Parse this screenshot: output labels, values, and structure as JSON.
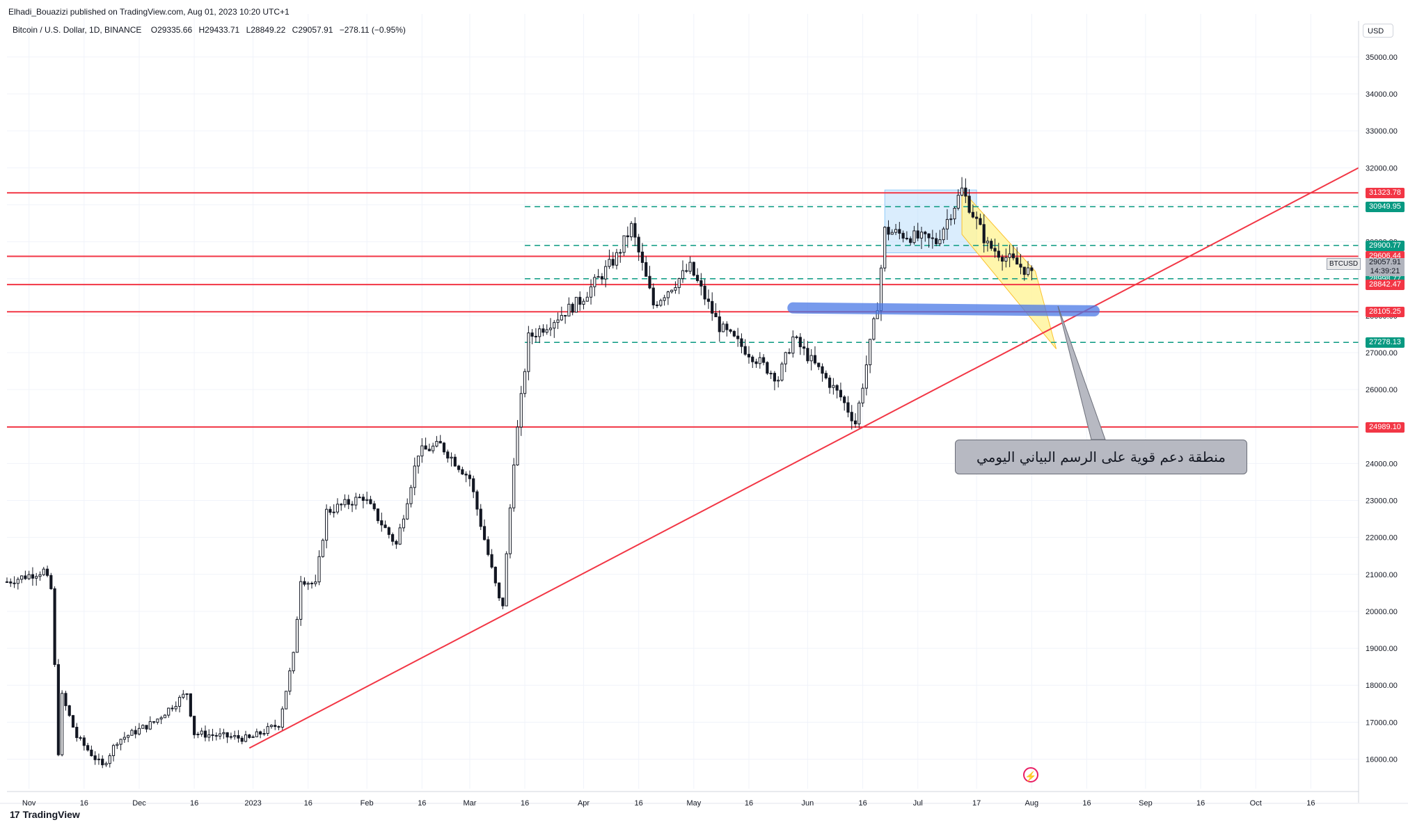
{
  "header": {
    "published": "Elhadi_Bouazizi published on TradingView.com, Aug 01, 2023 10:20 UTC+1",
    "symbol": "Bitcoin / U.S. Dollar, 1D, BINANCE",
    "ohlc": {
      "o_label": "O",
      "o": "29335.66",
      "h_label": "H",
      "h": "29433.71",
      "l_label": "L",
      "l": "28849.22",
      "c_label": "C",
      "c": "29057.91",
      "change": "−278.11 (−0.95%)"
    }
  },
  "currency_button": "USD",
  "symbol_tag": "BTCUSD",
  "last_price": {
    "value": "29057.91",
    "countdown": "14:39:21"
  },
  "callout_text": "منطقة دعم قوية على الرسم البياني اليومي",
  "branding": {
    "logo_text": "TradingView"
  },
  "colors": {
    "up": "#131722",
    "down": "#131722",
    "support_line": "#f23645",
    "dashed": "#089981",
    "zone_blue": "#4a78e6",
    "channel_yellow": "#fff59d",
    "box_blue": "#bbdefb"
  },
  "chart_data": {
    "type": "candlestick",
    "symbol": "BTCUSD",
    "timeframe": "1D",
    "y_ticks": [
      16000,
      17000,
      18000,
      19000,
      20000,
      21000,
      22000,
      23000,
      24000,
      25000,
      26000,
      27000,
      28000,
      29000,
      30000,
      31000,
      32000,
      33000,
      34000,
      35000
    ],
    "y_tick_labels": [
      "16000.00",
      "17000.00",
      "18000.00",
      "19000.00",
      "20000.00",
      "21000.00",
      "22000.00",
      "23000.00",
      "24000.00",
      "25000.00",
      "26000.00",
      "27000.00",
      "28000.00",
      "29000.00",
      "30000.00",
      "31000.00",
      "32000.00",
      "33000.00",
      "34000.00",
      "35000.00"
    ],
    "ylim": [
      15200,
      35600
    ],
    "x_labels": [
      {
        "date": "2022-11-01",
        "label": "Nov"
      },
      {
        "date": "2022-11-16",
        "label": "16"
      },
      {
        "date": "2022-12-01",
        "label": "Dec"
      },
      {
        "date": "2022-12-16",
        "label": "16"
      },
      {
        "date": "2023-01-01",
        "label": "2023"
      },
      {
        "date": "2023-01-16",
        "label": "16"
      },
      {
        "date": "2023-02-01",
        "label": "Feb"
      },
      {
        "date": "2023-02-16",
        "label": "16"
      },
      {
        "date": "2023-03-01",
        "label": "Mar"
      },
      {
        "date": "2023-03-16",
        "label": "16"
      },
      {
        "date": "2023-04-01",
        "label": "Apr"
      },
      {
        "date": "2023-04-16",
        "label": "16"
      },
      {
        "date": "2023-05-01",
        "label": "May"
      },
      {
        "date": "2023-05-16",
        "label": "16"
      },
      {
        "date": "2023-06-01",
        "label": "Jun"
      },
      {
        "date": "2023-06-16",
        "label": "16"
      },
      {
        "date": "2023-07-01",
        "label": "Jul"
      },
      {
        "date": "2023-07-17",
        "label": "17"
      },
      {
        "date": "2023-08-01",
        "label": "Aug"
      },
      {
        "date": "2023-08-16",
        "label": "16"
      },
      {
        "date": "2023-09-01",
        "label": "Sep"
      },
      {
        "date": "2023-09-16",
        "label": "16"
      },
      {
        "date": "2023-10-01",
        "label": "Oct"
      },
      {
        "date": "2023-10-16",
        "label": "16"
      }
    ],
    "xlim": [
      "2022-10-26",
      "2023-10-29"
    ],
    "close_path": [
      [
        "2022-10-26",
        20800
      ],
      [
        "2022-11-05",
        21100
      ],
      [
        "2022-11-07",
        20600
      ],
      [
        "2022-11-08",
        18500
      ],
      [
        "2022-11-09",
        16200
      ],
      [
        "2022-11-10",
        17700
      ],
      [
        "2022-11-14",
        16600
      ],
      [
        "2022-11-21",
        15800
      ],
      [
        "2022-11-25",
        16500
      ],
      [
        "2022-12-05",
        17000
      ],
      [
        "2022-12-14",
        17800
      ],
      [
        "2022-12-16",
        16700
      ],
      [
        "2022-12-31",
        16550
      ],
      [
        "2023-01-08",
        16950
      ],
      [
        "2023-01-12",
        18800
      ],
      [
        "2023-01-14",
        20900
      ],
      [
        "2023-01-18",
        20700
      ],
      [
        "2023-01-21",
        22700
      ],
      [
        "2023-01-31",
        23100
      ],
      [
        "2023-02-09",
        21800
      ],
      [
        "2023-02-15",
        24300
      ],
      [
        "2023-02-21",
        24500
      ],
      [
        "2023-03-01",
        23600
      ],
      [
        "2023-03-09",
        20300
      ],
      [
        "2023-03-10",
        20200
      ],
      [
        "2023-03-13",
        24100
      ],
      [
        "2023-03-17",
        27400
      ],
      [
        "2023-03-31",
        28400
      ],
      [
        "2023-04-10",
        29600
      ],
      [
        "2023-04-14",
        30400
      ],
      [
        "2023-04-20",
        28300
      ],
      [
        "2023-04-30",
        29300
      ],
      [
        "2023-05-08",
        27700
      ],
      [
        "2023-05-24",
        26300
      ],
      [
        "2023-05-28",
        27400
      ],
      [
        "2023-06-10",
        25800
      ],
      [
        "2023-06-14",
        25100
      ],
      [
        "2023-06-15",
        25600
      ],
      [
        "2023-06-20",
        28300
      ],
      [
        "2023-06-22",
        30300
      ],
      [
        "2023-07-06",
        30000
      ],
      [
        "2023-07-13",
        31400
      ],
      [
        "2023-07-20",
        29900
      ],
      [
        "2023-07-31",
        29200
      ],
      [
        "2023-08-01",
        29057.91
      ]
    ],
    "candles": [
      {
        "date": "2023-07-30",
        "o": 29200,
        "h": 29400,
        "l": 28900,
        "c": 29300
      },
      {
        "date": "2023-08-01",
        "o": 29335.66,
        "h": 29433.71,
        "l": 28849.22,
        "c": 29057.91
      }
    ],
    "horizontal_levels": [
      {
        "price": 31323.78,
        "label": "31323.78",
        "style": "solid",
        "color": "#f23645"
      },
      {
        "price": 30949.95,
        "label": "30949.95",
        "style": "dashed",
        "color": "#089981"
      },
      {
        "price": 29900.77,
        "label": "29900.77",
        "style": "dashed",
        "color": "#089981"
      },
      {
        "price": 29606.44,
        "label": "29606.44",
        "style": "solid",
        "color": "#f23645"
      },
      {
        "price": 28998.77,
        "label": "28998.77",
        "style": "dashed",
        "color": "#089981"
      },
      {
        "price": 28842.47,
        "label": "28842.47",
        "style": "solid",
        "color": "#f23645"
      },
      {
        "price": 28105.25,
        "label": "28105.25",
        "style": "solid",
        "color": "#f23645"
      },
      {
        "price": 27278.13,
        "label": "27278.13",
        "style": "dashed",
        "color": "#089981"
      },
      {
        "price": 24989.1,
        "label": "24989.10",
        "style": "solid",
        "color": "#f23645"
      }
    ],
    "trendline": {
      "from": [
        "2022-12-31",
        16300
      ],
      "to": [
        "2023-10-29",
        32000
      ]
    },
    "support_zone": {
      "from": "2023-05-28",
      "to": "2023-08-18",
      "price": 28150
    },
    "channel": {
      "from": "2023-07-13",
      "to": "2023-08-02",
      "top": [
        31400,
        29200
      ],
      "bottom": [
        30200,
        28000
      ]
    },
    "range_box": {
      "from": "2023-06-22",
      "to": "2023-07-17",
      "high": 31400,
      "low": 29700
    },
    "grid": true
  }
}
